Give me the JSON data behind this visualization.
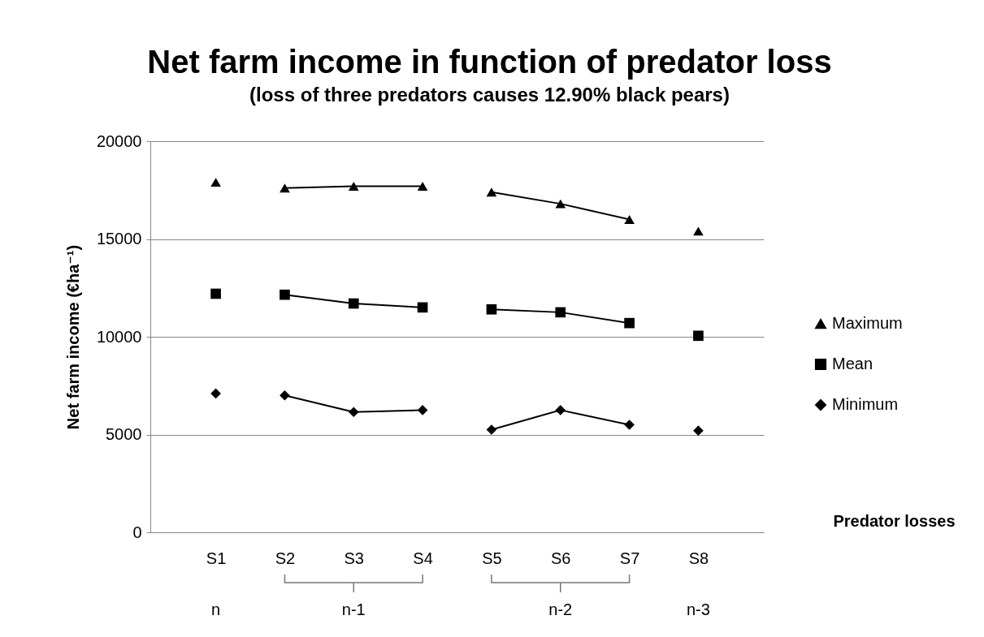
{
  "chart_data": {
    "type": "line",
    "title": "Net farm income in function of predator loss",
    "subtitle": "(loss of three predators causes 12.90% black pears)",
    "xlabel": "Predator losses",
    "ylabel": "Net farm income (€ha⁻¹)",
    "categories": [
      "S1",
      "S2",
      "S3",
      "S4",
      "S5",
      "S6",
      "S7",
      "S8"
    ],
    "series": [
      {
        "name": "Maximum",
        "type": "scatter",
        "marker": "triangle",
        "color": "#000000",
        "values": [
          17900,
          17600,
          17700,
          17700,
          17400,
          16800,
          16000,
          15400
        ]
      },
      {
        "name": "Mean",
        "type": "scatter",
        "marker": "square",
        "color": "#000000",
        "values": [
          12200,
          12150,
          11700,
          11500,
          11400,
          11250,
          10700,
          10050
        ]
      },
      {
        "name": "Minimum",
        "type": "scatter",
        "marker": "diamond",
        "color": "#000000",
        "values": [
          7100,
          7000,
          6150,
          6250,
          5250,
          6250,
          5500,
          5200
        ]
      },
      {
        "marker": "none",
        "color": "#000000",
        "x": [
          "S2",
          "S3",
          "S4"
        ],
        "values": [
          17600,
          17700,
          17700
        ]
      },
      {
        "marker": "none",
        "color": "#000000",
        "x": [
          "S5",
          "S6",
          "S7"
        ],
        "values": [
          17400,
          16800,
          16000
        ]
      },
      {
        "marker": "none",
        "color": "#000000",
        "x": [
          "S2",
          "S3",
          "S4"
        ],
        "values": [
          12150,
          11700,
          11500
        ]
      },
      {
        "marker": "none",
        "color": "#000000",
        "x": [
          "S5",
          "S6",
          "S7"
        ],
        "values": [
          11400,
          11250,
          10700
        ]
      },
      {
        "marker": "none",
        "color": "#000000",
        "x": [
          "S2",
          "S3",
          "S4"
        ],
        "values": [
          7000,
          6150,
          6250
        ]
      },
      {
        "marker": "none",
        "color": "#000000",
        "x": [
          "S5",
          "S6",
          "S7"
        ],
        "values": [
          5250,
          6250,
          5500
        ]
      }
    ],
    "ylim": [
      0,
      20000
    ],
    "yticks": [
      0,
      5000,
      10000,
      15000,
      20000
    ],
    "grid": "y",
    "legend": "right",
    "annotations": [
      "n",
      "n-1",
      "n-2",
      "n-3"
    ]
  }
}
